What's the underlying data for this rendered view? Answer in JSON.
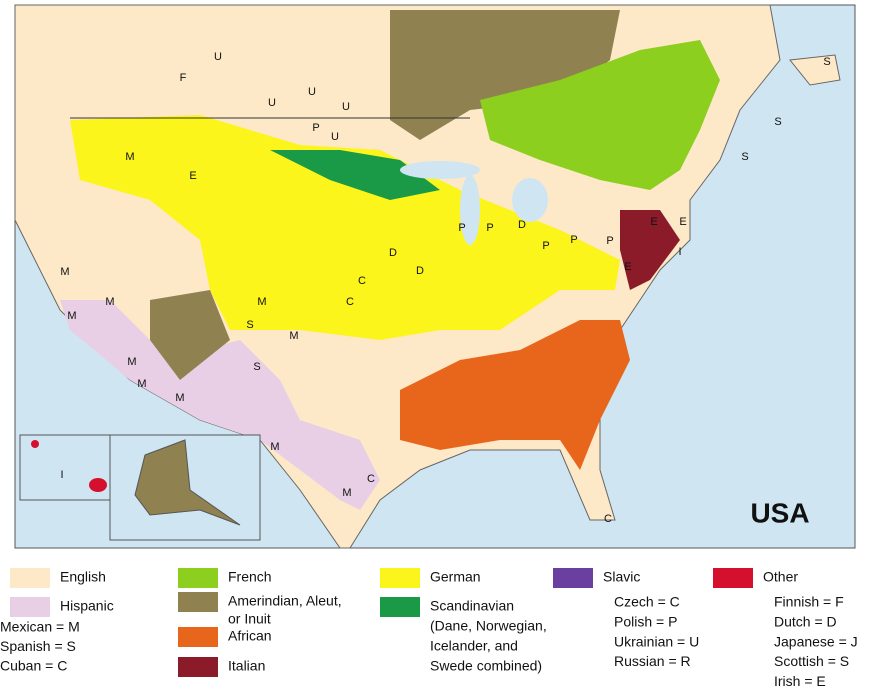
{
  "map": {
    "title": "USA",
    "labels": [
      "U",
      "F",
      "U",
      "U",
      "U",
      "P",
      "U",
      "M",
      "E",
      "P",
      "P",
      "D",
      "P",
      "D",
      "D",
      "C",
      "C",
      "M",
      "M",
      "M",
      "M",
      "S",
      "M",
      "S",
      "M",
      "M",
      "M",
      "M",
      "M",
      "C",
      "C",
      "I",
      "S",
      "S",
      "S",
      "E",
      "E",
      "I",
      "E",
      "P",
      "P"
    ]
  },
  "legend": {
    "items": [
      {
        "lines": [
          "English"
        ],
        "color": "#fde8c8"
      },
      {
        "lines": [
          "Hispanic"
        ],
        "color": "#e8cfe6",
        "sub": [
          "Mexican = M",
          "Spanish = S",
          "Cuban = C"
        ]
      },
      {
        "lines": [
          "French"
        ],
        "color": "#8ccf1e"
      },
      {
        "lines": [
          "Amerindian, Aleut,",
          "or Inuit"
        ],
        "color": "#8f8150"
      },
      {
        "lines": [
          "African"
        ],
        "color": "#e8661c"
      },
      {
        "lines": [
          "Italian"
        ],
        "color": "#8c1b2a"
      },
      {
        "lines": [
          "German"
        ],
        "color": "#fbf51c"
      },
      {
        "lines": [
          "Scandinavian",
          "(Dane, Norwegian,",
          "Icelander, and",
          "Swede combined)"
        ],
        "color": "#1a9a46"
      },
      {
        "lines": [
          "Slavic"
        ],
        "color": "#6b3fa0",
        "sub": [
          "Czech = C",
          "Polish = P",
          "Ukrainian = U",
          "Russian = R"
        ]
      },
      {
        "lines": [
          "Other"
        ],
        "color": "#d4102e",
        "sub": [
          "Finnish = F",
          "Dutch = D",
          "Japanese = J",
          "Scottish = S",
          "Irish = E"
        ]
      }
    ]
  }
}
